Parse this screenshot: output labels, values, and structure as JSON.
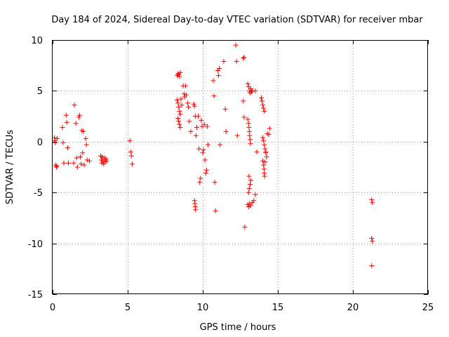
{
  "chart_data": {
    "type": "scatter",
    "title": "Day 184 of 2024, Sidereal Day-to-day VTEC variation (SDTVAR) for receiver mbar",
    "xlabel": "GPS time / hours",
    "ylabel": "SDTVAR / TECUs",
    "xlim": [
      0,
      25
    ],
    "ylim": [
      -15,
      10
    ],
    "xticks": [
      0,
      5,
      10,
      15,
      20,
      25
    ],
    "xtick_labels": [
      "0",
      "5",
      "10",
      "15",
      "20",
      "25"
    ],
    "yticks": [
      -15,
      -10,
      -5,
      0,
      5,
      10
    ],
    "ytick_labels": [
      "-15",
      "-10",
      "-5",
      "0",
      "5",
      "10"
    ],
    "grid": true,
    "marker": "+",
    "color": "#ff0000",
    "series": [
      {
        "name": "SDTVAR",
        "points": [
          [
            0.12,
            0.4
          ],
          [
            0.15,
            0.1
          ],
          [
            0.18,
            -0.1
          ],
          [
            0.2,
            -2.3
          ],
          [
            0.25,
            -2.5
          ],
          [
            0.28,
            -2.4
          ],
          [
            0.3,
            0.3
          ],
          [
            0.65,
            1.4
          ],
          [
            0.7,
            -0.1
          ],
          [
            0.75,
            -2.1
          ],
          [
            0.9,
            2.6
          ],
          [
            0.95,
            1.9
          ],
          [
            1.0,
            -0.6
          ],
          [
            1.05,
            -2.1
          ],
          [
            1.4,
            -2.1
          ],
          [
            1.45,
            3.6
          ],
          [
            1.55,
            1.8
          ],
          [
            1.6,
            -1.6
          ],
          [
            1.65,
            -2.5
          ],
          [
            1.75,
            2.4
          ],
          [
            1.8,
            2.6
          ],
          [
            1.85,
            -1.5
          ],
          [
            1.9,
            -2.2
          ],
          [
            1.95,
            1.1
          ],
          [
            2.0,
            -1.1
          ],
          [
            2.05,
            1.0
          ],
          [
            2.1,
            -2.3
          ],
          [
            2.2,
            0.3
          ],
          [
            2.25,
            -0.3
          ],
          [
            2.3,
            -1.8
          ],
          [
            2.45,
            -1.9
          ],
          [
            3.2,
            -1.4
          ],
          [
            3.25,
            -1.8
          ],
          [
            3.28,
            -2.1
          ],
          [
            3.3,
            -1.5
          ],
          [
            3.35,
            -1.9
          ],
          [
            3.4,
            -2.2
          ],
          [
            3.45,
            -1.6
          ],
          [
            3.5,
            -2.0
          ],
          [
            3.55,
            -1.7
          ],
          [
            3.6,
            -1.9
          ],
          [
            5.15,
            0.1
          ],
          [
            5.2,
            -1.0
          ],
          [
            5.25,
            -1.4
          ],
          [
            5.3,
            -2.2
          ],
          [
            8.3,
            6.5
          ],
          [
            8.35,
            6.7
          ],
          [
            8.4,
            6.6
          ],
          [
            8.45,
            6.4
          ],
          [
            8.5,
            6.8
          ],
          [
            8.3,
            4.1
          ],
          [
            8.35,
            3.8
          ],
          [
            8.4,
            3.4
          ],
          [
            8.45,
            3.0
          ],
          [
            8.5,
            2.7
          ],
          [
            8.35,
            2.3
          ],
          [
            8.4,
            2.0
          ],
          [
            8.45,
            1.7
          ],
          [
            8.5,
            1.4
          ],
          [
            8.55,
            4.2
          ],
          [
            8.6,
            3.6
          ],
          [
            8.7,
            5.5
          ],
          [
            8.75,
            4.7
          ],
          [
            8.8,
            4.4
          ],
          [
            8.85,
            5.5
          ],
          [
            8.9,
            4.6
          ],
          [
            9.0,
            3.8
          ],
          [
            9.05,
            3.4
          ],
          [
            9.1,
            2.0
          ],
          [
            9.2,
            1.0
          ],
          [
            9.4,
            3.7
          ],
          [
            9.45,
            3.5
          ],
          [
            9.5,
            2.5
          ],
          [
            9.55,
            0.6
          ],
          [
            9.6,
            1.4
          ],
          [
            9.45,
            -5.8
          ],
          [
            9.48,
            -6.1
          ],
          [
            9.5,
            -6.4
          ],
          [
            9.52,
            -6.7
          ],
          [
            9.7,
            2.5
          ],
          [
            9.75,
            -0.7
          ],
          [
            9.8,
            -4.0
          ],
          [
            9.85,
            -3.6
          ],
          [
            9.9,
            2.1
          ],
          [
            9.95,
            1.5
          ],
          [
            10.0,
            -1.1
          ],
          [
            10.05,
            -0.8
          ],
          [
            10.1,
            1.7
          ],
          [
            10.15,
            -1.8
          ],
          [
            10.2,
            -3.1
          ],
          [
            10.25,
            -2.8
          ],
          [
            10.3,
            1.5
          ],
          [
            10.35,
            -0.3
          ],
          [
            10.7,
            6.0
          ],
          [
            10.75,
            4.5
          ],
          [
            10.8,
            -4.0
          ],
          [
            10.85,
            -6.8
          ],
          [
            11.0,
            7.0
          ],
          [
            11.05,
            6.5
          ],
          [
            11.1,
            7.2
          ],
          [
            11.15,
            -0.3
          ],
          [
            11.4,
            7.9
          ],
          [
            11.5,
            3.2
          ],
          [
            11.55,
            1.0
          ],
          [
            12.2,
            9.5
          ],
          [
            12.25,
            7.9
          ],
          [
            12.3,
            0.6
          ],
          [
            12.7,
            8.2
          ],
          [
            12.75,
            8.3
          ],
          [
            12.7,
            4.0
          ],
          [
            12.75,
            2.4
          ],
          [
            12.8,
            -8.4
          ],
          [
            13.0,
            5.7
          ],
          [
            13.05,
            5.4
          ],
          [
            13.1,
            5.0
          ],
          [
            13.15,
            4.8
          ],
          [
            13.2,
            5.2
          ],
          [
            13.25,
            4.9
          ],
          [
            13.3,
            5.0
          ],
          [
            13.0,
            2.2
          ],
          [
            13.05,
            1.8
          ],
          [
            13.08,
            1.4
          ],
          [
            13.1,
            1.0
          ],
          [
            13.12,
            0.6
          ],
          [
            13.15,
            0.2
          ],
          [
            13.18,
            -0.2
          ],
          [
            13.05,
            -5.0
          ],
          [
            13.1,
            -4.6
          ],
          [
            13.15,
            -4.2
          ],
          [
            13.2,
            -3.8
          ],
          [
            13.08,
            -3.4
          ],
          [
            13.0,
            -6.2
          ],
          [
            13.05,
            -6.4
          ],
          [
            13.1,
            -6.1
          ],
          [
            13.2,
            -6.3
          ],
          [
            13.3,
            -6.0
          ],
          [
            13.4,
            -5.8
          ],
          [
            13.5,
            -5.2
          ],
          [
            13.6,
            -1.0
          ],
          [
            13.5,
            5.0
          ],
          [
            13.9,
            4.3
          ],
          [
            13.95,
            4.0
          ],
          [
            14.0,
            3.6
          ],
          [
            14.05,
            3.3
          ],
          [
            14.1,
            3.0
          ],
          [
            14.0,
            0.4
          ],
          [
            14.05,
            0.1
          ],
          [
            14.1,
            -0.3
          ],
          [
            14.15,
            -0.7
          ],
          [
            14.2,
            -1.1
          ],
          [
            14.25,
            -1.5
          ],
          [
            14.0,
            -1.9
          ],
          [
            14.05,
            -2.3
          ],
          [
            14.08,
            -2.7
          ],
          [
            14.1,
            -3.1
          ],
          [
            14.12,
            -3.4
          ],
          [
            14.15,
            -2.0
          ],
          [
            14.2,
            -1.0
          ],
          [
            14.3,
            0.8
          ],
          [
            14.4,
            0.7
          ],
          [
            14.45,
            1.3
          ],
          [
            21.25,
            -5.7
          ],
          [
            21.3,
            -6.0
          ],
          [
            21.25,
            -9.5
          ],
          [
            21.3,
            -9.8
          ],
          [
            21.25,
            -12.2
          ]
        ]
      }
    ]
  }
}
